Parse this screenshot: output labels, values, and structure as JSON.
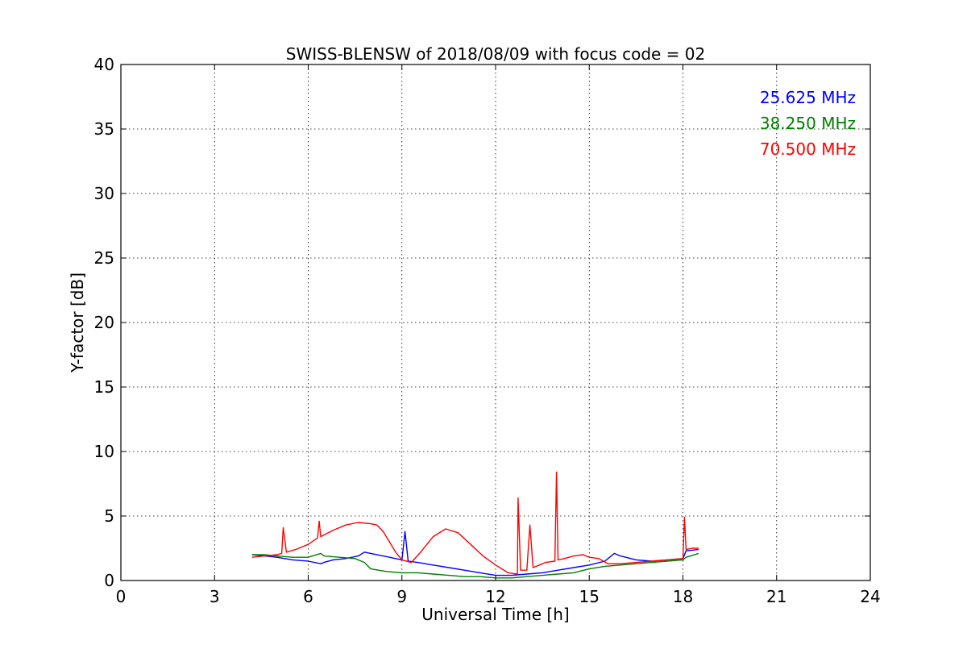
{
  "chart_data": {
    "type": "line",
    "title": "SWISS-BLENSW of 2018/08/09 with focus code = 02",
    "xlabel": "Universal Time [h]",
    "ylabel": "Y-factor [dB]",
    "xlim": [
      0,
      24
    ],
    "ylim": [
      0,
      40
    ],
    "xticks": [
      0,
      3,
      6,
      9,
      12,
      15,
      18,
      21,
      24
    ],
    "yticks": [
      0,
      5,
      10,
      15,
      20,
      25,
      30,
      35,
      40
    ],
    "grid": true,
    "legend_position": "top-right",
    "series": [
      {
        "name": "25.625 MHz",
        "color": "#0000ff",
        "x": [
          4.2,
          4.6,
          5.0,
          5.5,
          6.0,
          6.4,
          6.5,
          6.8,
          7.2,
          7.6,
          7.8,
          8.0,
          8.4,
          8.8,
          9.0,
          9.1,
          9.2,
          9.5,
          10.0,
          10.5,
          11.0,
          11.5,
          12.0,
          12.5,
          13.0,
          13.5,
          14.0,
          14.5,
          15.0,
          15.5,
          15.8,
          16.0,
          16.5,
          17.0,
          17.5,
          18.0,
          18.1,
          18.5
        ],
        "y": [
          2.0,
          1.9,
          1.8,
          1.6,
          1.5,
          1.3,
          1.4,
          1.6,
          1.7,
          1.9,
          2.2,
          2.1,
          1.9,
          1.7,
          1.6,
          3.8,
          1.5,
          1.4,
          1.2,
          1.0,
          0.8,
          0.6,
          0.4,
          0.4,
          0.5,
          0.6,
          0.8,
          1.0,
          1.2,
          1.5,
          2.1,
          1.9,
          1.6,
          1.5,
          1.6,
          1.7,
          2.3,
          2.4
        ]
      },
      {
        "name": "38.250 MHz",
        "color": "#008000",
        "x": [
          4.2,
          4.6,
          5.0,
          5.5,
          6.0,
          6.4,
          6.5,
          7.0,
          7.5,
          7.8,
          8.0,
          8.5,
          9.0,
          9.5,
          10.0,
          10.5,
          11.0,
          11.5,
          12.0,
          12.5,
          13.0,
          13.5,
          14.0,
          14.5,
          15.0,
          15.5,
          16.0,
          16.5,
          17.0,
          17.5,
          18.0,
          18.1,
          18.5
        ],
        "y": [
          2.0,
          2.0,
          1.9,
          1.8,
          1.8,
          2.1,
          1.9,
          1.8,
          1.7,
          1.4,
          0.9,
          0.7,
          0.6,
          0.6,
          0.5,
          0.4,
          0.3,
          0.3,
          0.2,
          0.2,
          0.3,
          0.4,
          0.5,
          0.6,
          0.9,
          1.1,
          1.2,
          1.3,
          1.4,
          1.5,
          1.6,
          1.8,
          2.1
        ]
      },
      {
        "name": "70.500 MHz",
        "color": "#ff0000",
        "x": [
          4.2,
          4.6,
          5.0,
          5.15,
          5.2,
          5.3,
          5.6,
          6.0,
          6.3,
          6.35,
          6.4,
          6.8,
          7.2,
          7.6,
          8.0,
          8.2,
          8.4,
          8.6,
          8.8,
          9.0,
          9.3,
          9.6,
          10.0,
          10.4,
          10.8,
          11.2,
          11.6,
          12.0,
          12.4,
          12.7,
          12.72,
          12.8,
          13.0,
          13.1,
          13.2,
          13.4,
          13.6,
          13.9,
          13.95,
          14.0,
          14.2,
          14.5,
          14.8,
          15.0,
          15.3,
          15.6,
          16.0,
          16.5,
          17.0,
          17.5,
          18.0,
          18.05,
          18.1,
          18.3,
          18.5
        ],
        "y": [
          1.8,
          1.9,
          2.0,
          2.1,
          4.1,
          2.2,
          2.4,
          2.8,
          3.3,
          4.6,
          3.4,
          3.9,
          4.3,
          4.5,
          4.4,
          4.3,
          3.8,
          3.0,
          2.2,
          1.6,
          1.4,
          2.2,
          3.4,
          4.0,
          3.7,
          2.8,
          1.9,
          1.2,
          0.6,
          0.5,
          6.4,
          0.8,
          0.8,
          4.3,
          1.0,
          1.2,
          1.4,
          1.5,
          8.4,
          1.6,
          1.7,
          1.9,
          2.0,
          1.8,
          1.7,
          1.3,
          1.3,
          1.4,
          1.5,
          1.6,
          1.7,
          4.9,
          2.4,
          2.5,
          2.5
        ]
      }
    ]
  }
}
